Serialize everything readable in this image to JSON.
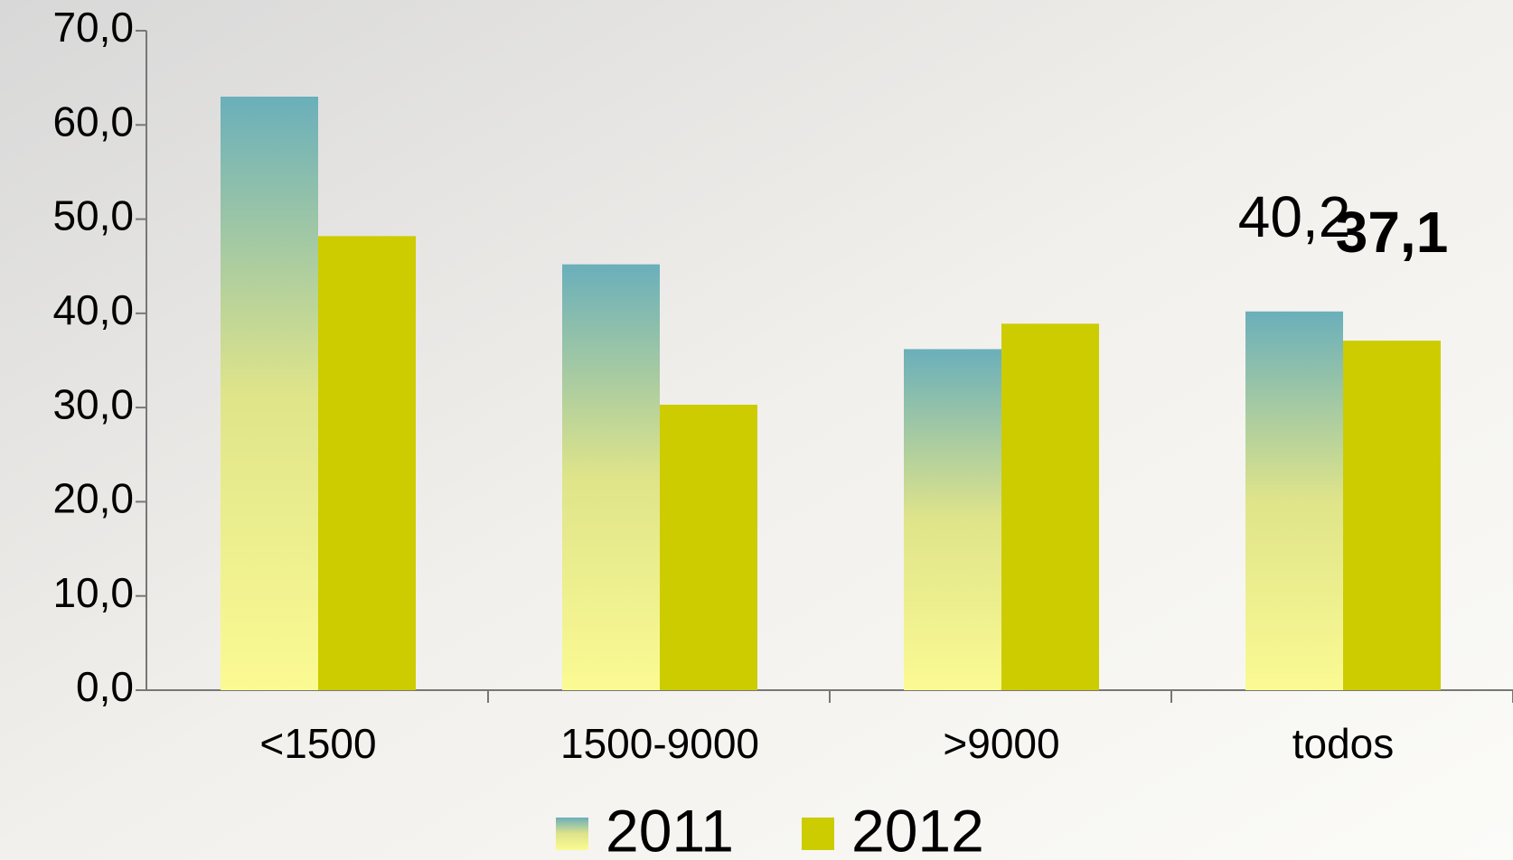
{
  "chart_data": {
    "type": "bar",
    "categories": [
      "<1500",
      "1500-9000",
      ">9000",
      "todos"
    ],
    "series": [
      {
        "name": "2011",
        "color": "#6aafbb",
        "values": [
          63.0,
          45.2,
          36.2,
          40.2
        ],
        "value_labels": [
          null,
          null,
          null,
          "40,2"
        ]
      },
      {
        "name": "2012",
        "color": "#cccc00",
        "values": [
          48.2,
          30.3,
          38.9,
          37.1
        ],
        "value_labels": [
          null,
          null,
          null,
          "37,1"
        ]
      }
    ],
    "ylim": [
      0,
      70
    ],
    "yticks": [
      {
        "value": 0,
        "label": "0,0"
      },
      {
        "value": 10,
        "label": "10,0"
      },
      {
        "value": 20,
        "label": "20,0"
      },
      {
        "value": 30,
        "label": "30,0"
      },
      {
        "value": 40,
        "label": "40,0"
      },
      {
        "value": 50,
        "label": "50,0"
      },
      {
        "value": 60,
        "label": "60,0"
      },
      {
        "value": 70,
        "label": "70,0"
      }
    ],
    "grid": false,
    "legend": "bottom"
  }
}
